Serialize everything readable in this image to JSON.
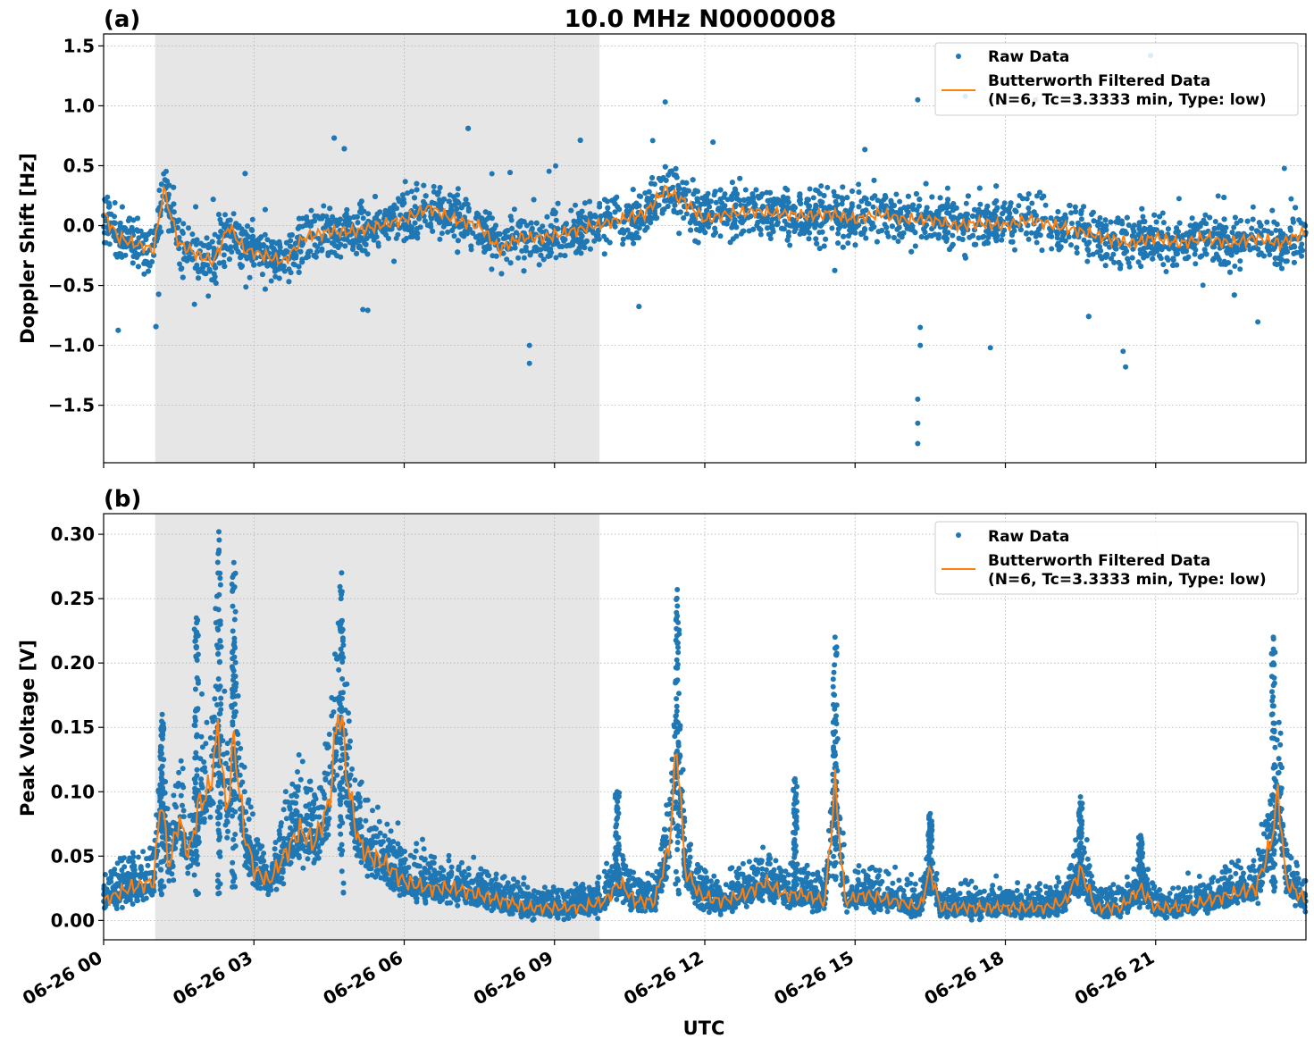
{
  "title": "10.0 MHz N0000008",
  "xlabel": "UTC",
  "x_ticks": [
    "06-26 00",
    "06-26 03",
    "06-26 06",
    "06-26 09",
    "06-26 12",
    "06-26 15",
    "06-26 18",
    "06-26 21"
  ],
  "x_range_hours": [
    0,
    24
  ],
  "night_shading_hours": [
    1.03,
    9.9
  ],
  "colors": {
    "raw": "#1f77b4",
    "filtered": "#ff7f0e",
    "shading": "#e6e6e6",
    "grid": "#b0b0b0"
  },
  "legend": {
    "raw": "Raw Data",
    "filtered_line1": "Butterworth Filtered Data",
    "filtered_line2": "(N=6, Tc=3.3333 min, Type: low)"
  },
  "chart_data": [
    {
      "type": "scatter",
      "panel_label": "(a)",
      "ylabel": "Doppler Shift [Hz]",
      "ylim": [
        -1.98,
        1.6
      ],
      "y_ticks": [
        1.5,
        1.0,
        0.5,
        0.0,
        -0.5,
        -1.0,
        -1.5
      ],
      "y_tick_labels": [
        "1.5",
        "1.0",
        "0.5",
        "0.0",
        "−0.5",
        "−1.0",
        "−1.5"
      ],
      "grid": true,
      "legend_position": "top-right",
      "series": [
        {
          "name": "Raw Data",
          "kind": "points",
          "envelope": "approximately ±0.3 Hz around filtered curve with outliers"
        },
        {
          "name": "Butterworth Filtered Data",
          "kind": "line",
          "x_hours": [
            0,
            0.3,
            0.6,
            1.0,
            1.2,
            1.5,
            1.9,
            2.2,
            2.5,
            2.8,
            3.2,
            3.6,
            4.0,
            4.5,
            5.0,
            5.5,
            6.0,
            6.5,
            7.0,
            7.5,
            7.9,
            8.3,
            8.8,
            9.3,
            9.8,
            10.3,
            10.8,
            11.2,
            11.6,
            12.0,
            12.5,
            13.0,
            13.5,
            14.0,
            14.5,
            15.0,
            15.5,
            16.0,
            16.5,
            17.0,
            17.5,
            18.0,
            18.5,
            19.0,
            19.5,
            20.0,
            20.5,
            21.0,
            21.5,
            22.0,
            22.5,
            23.0,
            23.5,
            24.0
          ],
          "y": [
            0.1,
            -0.1,
            -0.15,
            -0.2,
            0.3,
            -0.15,
            -0.25,
            -0.3,
            0.0,
            -0.2,
            -0.25,
            -0.3,
            -0.1,
            -0.05,
            -0.05,
            0.0,
            0.05,
            0.15,
            0.05,
            0.0,
            -0.2,
            -0.1,
            -0.1,
            -0.05,
            0.0,
            0.05,
            0.1,
            0.3,
            0.2,
            0.05,
            0.1,
            0.12,
            0.1,
            0.08,
            0.1,
            0.05,
            0.1,
            0.05,
            0.05,
            0.0,
            0.02,
            0.0,
            0.05,
            0.0,
            -0.05,
            -0.1,
            -0.15,
            -0.1,
            -0.15,
            -0.1,
            -0.15,
            -0.1,
            -0.15,
            -0.05
          ]
        }
      ]
    },
    {
      "type": "scatter",
      "panel_label": "(b)",
      "ylabel": "Peak Voltage [V]",
      "ylim": [
        -0.015,
        0.316
      ],
      "y_ticks": [
        0.3,
        0.25,
        0.2,
        0.15,
        0.1,
        0.05,
        0.0
      ],
      "y_tick_labels": [
        "0.30",
        "0.25",
        "0.20",
        "0.15",
        "0.10",
        "0.05",
        "0.00"
      ],
      "grid": true,
      "legend_position": "top-right",
      "series": [
        {
          "name": "Raw Data",
          "kind": "points",
          "spikes": [
            {
              "x_hours": 1.17,
              "y_max": 0.16
            },
            {
              "x_hours": 1.85,
              "y_max": 0.235
            },
            {
              "x_hours": 2.3,
              "y_max": 0.302
            },
            {
              "x_hours": 2.6,
              "y_max": 0.278
            },
            {
              "x_hours": 4.75,
              "y_max": 0.27
            },
            {
              "x_hours": 10.25,
              "y_max": 0.1
            },
            {
              "x_hours": 11.45,
              "y_max": 0.257
            },
            {
              "x_hours": 13.8,
              "y_max": 0.11
            },
            {
              "x_hours": 14.6,
              "y_max": 0.22
            },
            {
              "x_hours": 16.5,
              "y_max": 0.083
            },
            {
              "x_hours": 19.5,
              "y_max": 0.096
            },
            {
              "x_hours": 20.7,
              "y_max": 0.066
            },
            {
              "x_hours": 23.35,
              "y_max": 0.22
            }
          ]
        },
        {
          "name": "Butterworth Filtered Data",
          "kind": "line",
          "x_hours": [
            0,
            0.5,
            1.0,
            1.15,
            1.3,
            1.5,
            1.7,
            1.9,
            2.1,
            2.3,
            2.45,
            2.6,
            2.8,
            3.0,
            3.3,
            3.6,
            3.9,
            4.2,
            4.5,
            4.7,
            4.9,
            5.1,
            5.3,
            5.6,
            6.0,
            6.5,
            7.0,
            7.5,
            8.0,
            8.5,
            9.0,
            9.5,
            10.0,
            10.3,
            10.6,
            11.0,
            11.3,
            11.45,
            11.6,
            11.9,
            12.3,
            12.8,
            13.2,
            13.6,
            14.0,
            14.4,
            14.6,
            14.8,
            15.2,
            15.8,
            16.3,
            16.5,
            16.7,
            17.2,
            17.8,
            18.3,
            18.8,
            19.2,
            19.5,
            19.8,
            20.3,
            20.7,
            21.0,
            21.5,
            22.0,
            22.5,
            23.0,
            23.3,
            23.45,
            23.6,
            24.0
          ],
          "y": [
            0.015,
            0.025,
            0.03,
            0.1,
            0.04,
            0.08,
            0.05,
            0.09,
            0.1,
            0.15,
            0.08,
            0.14,
            0.07,
            0.04,
            0.03,
            0.05,
            0.07,
            0.06,
            0.09,
            0.17,
            0.1,
            0.06,
            0.05,
            0.045,
            0.03,
            0.025,
            0.025,
            0.02,
            0.015,
            0.01,
            0.01,
            0.01,
            0.015,
            0.03,
            0.015,
            0.015,
            0.06,
            0.14,
            0.04,
            0.02,
            0.015,
            0.02,
            0.03,
            0.02,
            0.02,
            0.015,
            0.105,
            0.015,
            0.02,
            0.015,
            0.01,
            0.04,
            0.01,
            0.01,
            0.01,
            0.01,
            0.01,
            0.015,
            0.04,
            0.01,
            0.01,
            0.025,
            0.01,
            0.01,
            0.015,
            0.02,
            0.025,
            0.06,
            0.1,
            0.03,
            0.015
          ]
        }
      ]
    }
  ]
}
